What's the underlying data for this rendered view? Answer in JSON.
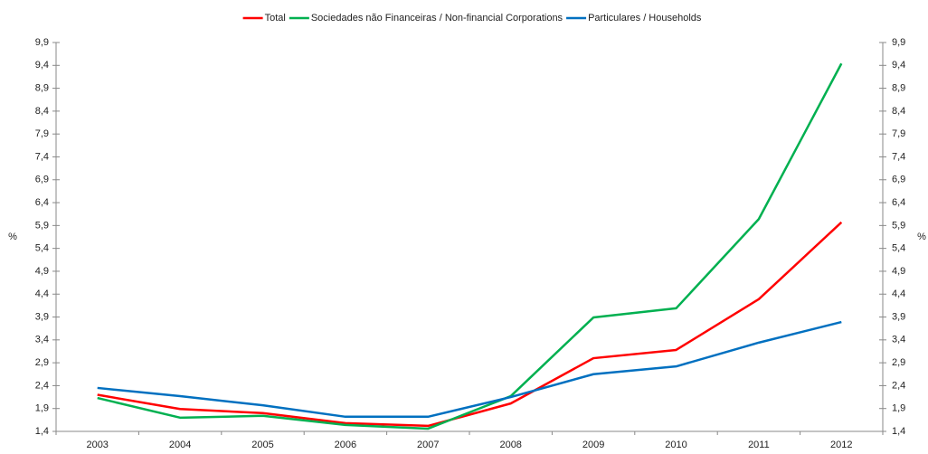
{
  "chart_data": {
    "type": "line",
    "categories": [
      "2003",
      "2004",
      "2005",
      "2006",
      "2007",
      "2008",
      "2009",
      "2010",
      "2011",
      "2012"
    ],
    "series": [
      {
        "name": "Total",
        "color": "#ff0000",
        "values": [
          2.2,
          1.89,
          1.8,
          1.58,
          1.52,
          2.01,
          3.0,
          3.18,
          4.29,
          5.97
        ]
      },
      {
        "name": "Sociedades não Financeiras / Non-financial Corporations",
        "color": "#00b050",
        "values": [
          2.13,
          1.7,
          1.74,
          1.54,
          1.46,
          2.17,
          3.89,
          4.09,
          6.04,
          9.44
        ]
      },
      {
        "name": "Particulares / Households",
        "color": "#0070c0",
        "values": [
          2.35,
          2.17,
          1.97,
          1.72,
          1.72,
          2.15,
          2.65,
          2.82,
          3.34,
          3.79
        ]
      }
    ],
    "y_label": "%",
    "y2_label": "%",
    "ylim": [
      1.4,
      9.9
    ],
    "yticks": [
      {
        "value": 1.4,
        "label": "1,4"
      },
      {
        "value": 1.9,
        "label": "1,9"
      },
      {
        "value": 2.4,
        "label": "2,4"
      },
      {
        "value": 2.9,
        "label": "2,9"
      },
      {
        "value": 3.4,
        "label": "3,4"
      },
      {
        "value": 3.9,
        "label": "3,9"
      },
      {
        "value": 4.4,
        "label": "4,4"
      },
      {
        "value": 4.9,
        "label": "4,9"
      },
      {
        "value": 5.4,
        "label": "5,4"
      },
      {
        "value": 5.9,
        "label": "5,9"
      },
      {
        "value": 6.4,
        "label": "6,4"
      },
      {
        "value": 6.9,
        "label": "6,9"
      },
      {
        "value": 7.4,
        "label": "7,4"
      },
      {
        "value": 7.9,
        "label": "7,9"
      },
      {
        "value": 8.4,
        "label": "8,4"
      },
      {
        "value": 8.9,
        "label": "8,9"
      },
      {
        "value": 9.4,
        "label": "9,4"
      },
      {
        "value": 9.9,
        "label": "9,9"
      }
    ],
    "y2lim": [
      1.4,
      9.9
    ],
    "y2ticks": [
      {
        "value": 1.4,
        "label": "1,4"
      },
      {
        "value": 1.9,
        "label": "1,9"
      },
      {
        "value": 2.4,
        "label": "2,4"
      },
      {
        "value": 2.9,
        "label": "2,9"
      },
      {
        "value": 3.4,
        "label": "3,4"
      },
      {
        "value": 3.9,
        "label": "3,9"
      },
      {
        "value": 4.4,
        "label": "4,4"
      },
      {
        "value": 4.9,
        "label": "4,9"
      },
      {
        "value": 5.4,
        "label": "5,4"
      },
      {
        "value": 5.9,
        "label": "5,9"
      },
      {
        "value": 6.4,
        "label": "6,4"
      },
      {
        "value": 6.9,
        "label": "6,9"
      },
      {
        "value": 7.4,
        "label": "7,4"
      },
      {
        "value": 7.9,
        "label": "7,9"
      },
      {
        "value": 8.4,
        "label": "8,4"
      },
      {
        "value": 8.9,
        "label": "8,9"
      },
      {
        "value": 9.4,
        "label": "9,4"
      },
      {
        "value": 9.9,
        "label": "9,9"
      }
    ],
    "grid": false
  }
}
